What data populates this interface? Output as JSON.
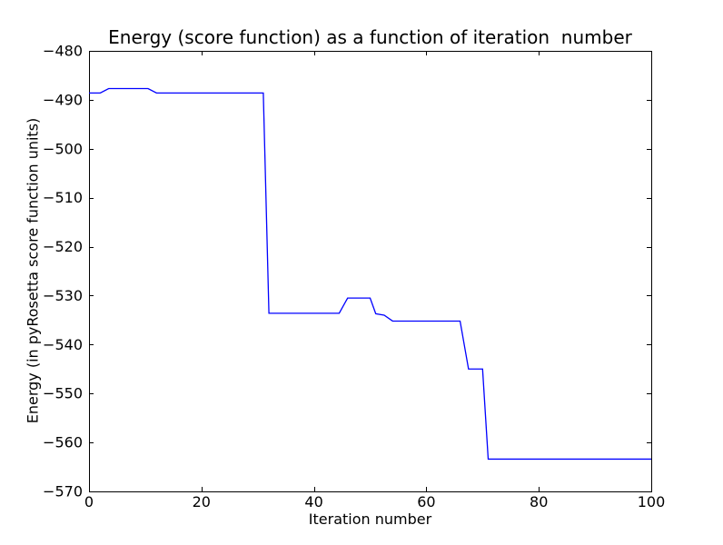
{
  "chart_data": {
    "type": "line",
    "title": "Energy (score function) as a function of iteration  number",
    "xlabel": "Iteration number",
    "ylabel": "Energy (in pyRosetta score function units)",
    "xlim": [
      0,
      100
    ],
    "ylim": [
      -570,
      -480
    ],
    "x_ticks": [
      0,
      20,
      40,
      60,
      80,
      100
    ],
    "x_tick_labels": [
      "0",
      "20",
      "40",
      "60",
      "80",
      "100"
    ],
    "y_ticks": [
      -480,
      -490,
      -500,
      -510,
      -520,
      -530,
      -540,
      -550,
      -560,
      -570
    ],
    "y_tick_labels": [
      "−480",
      "−490",
      "−500",
      "−510",
      "−520",
      "−530",
      "−540",
      "−550",
      "−560",
      "−570"
    ],
    "grid": false,
    "legend": "none",
    "line_color": "#0000ff",
    "axis_color": "#000000",
    "background_color": "#ffffff",
    "series": [
      {
        "name": "energy",
        "x": [
          0,
          2,
          3.5,
          10.5,
          12,
          31,
          32,
          44.5,
          46,
          50,
          51,
          52.5,
          54,
          66,
          67.5,
          70,
          71,
          100
        ],
        "y": [
          -488.6,
          -488.6,
          -487.7,
          -487.7,
          -488.6,
          -488.6,
          -533.6,
          -533.6,
          -530.5,
          -530.5,
          -533.7,
          -534.0,
          -535.2,
          -535.2,
          -545.0,
          -545.0,
          -563.4,
          -563.4
        ]
      }
    ]
  }
}
